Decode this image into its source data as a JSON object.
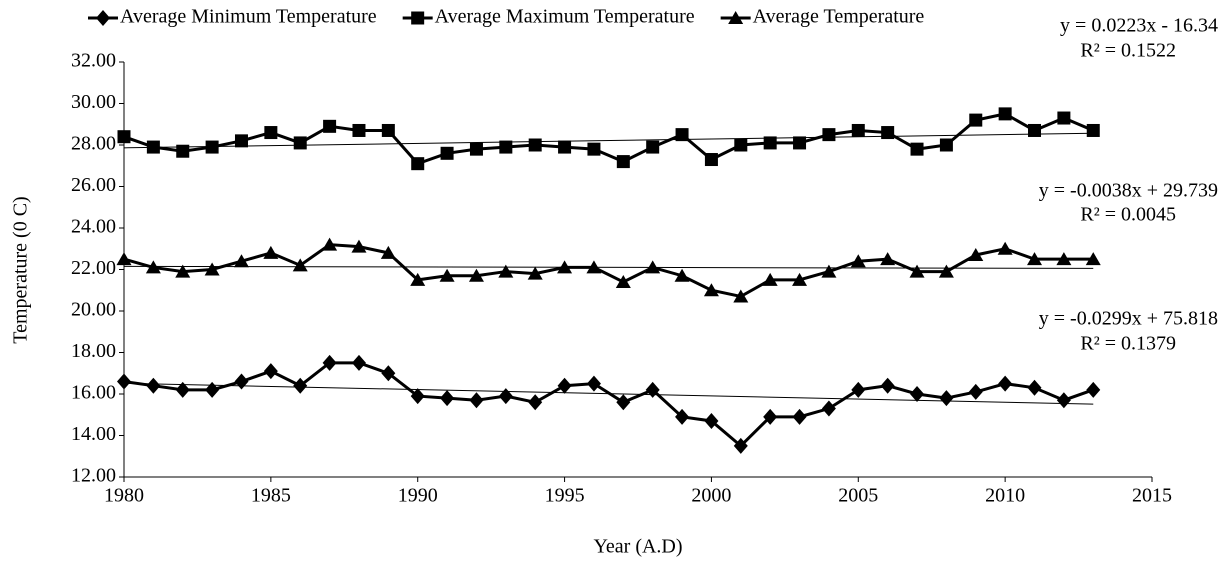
{
  "chart_data": {
    "type": "line",
    "x_label": "Year (A.D)",
    "y_label": "Temperature (0 C)",
    "x": [
      1980,
      1981,
      1982,
      1983,
      1984,
      1985,
      1986,
      1987,
      1988,
      1989,
      1990,
      1991,
      1992,
      1993,
      1994,
      1995,
      1996,
      1997,
      1998,
      1999,
      2000,
      2001,
      2002,
      2003,
      2004,
      2005,
      2006,
      2007,
      2008,
      2009,
      2010,
      2011,
      2012,
      2013
    ],
    "xlim": [
      1980,
      2015
    ],
    "xticks": [
      1980,
      1985,
      1990,
      1995,
      2000,
      2005,
      2010,
      2015
    ],
    "ylim": [
      12,
      32
    ],
    "yticks": [
      {
        "value": 12,
        "label": "12.00"
      },
      {
        "value": 14,
        "label": "14.00"
      },
      {
        "value": 16,
        "label": "16.00"
      },
      {
        "value": 18,
        "label": "18.00"
      },
      {
        "value": 20,
        "label": "20.00"
      },
      {
        "value": 22,
        "label": "22.00"
      },
      {
        "value": 24,
        "label": "24.00"
      },
      {
        "value": 26,
        "label": "26.00"
      },
      {
        "value": 28,
        "label": "28.00"
      },
      {
        "value": 30,
        "label": "30.00"
      },
      {
        "value": 32,
        "label": "32.00"
      }
    ],
    "legend": "top",
    "series": [
      {
        "name": "Average Minimum Temperature",
        "color": "#000000",
        "marker": "diamond",
        "values": [
          16.6,
          16.4,
          16.2,
          16.2,
          16.6,
          17.1,
          16.4,
          17.5,
          17.5,
          17.0,
          15.9,
          15.8,
          15.7,
          15.9,
          15.6,
          16.4,
          16.5,
          15.6,
          16.2,
          14.9,
          14.7,
          13.5,
          14.9,
          14.9,
          15.3,
          16.2,
          16.4,
          16.0,
          15.8,
          16.1,
          16.5,
          16.3,
          15.7,
          16.2
        ],
        "trendline": {
          "equation": "y = -0.0299x + 75.818",
          "r2": "R² = 0.1379"
        }
      },
      {
        "name": "Average Maximum Temperature",
        "color": "#000000",
        "marker": "square",
        "values": [
          28.4,
          27.9,
          27.7,
          27.9,
          28.2,
          28.6,
          28.1,
          28.9,
          28.7,
          28.7,
          27.1,
          27.6,
          27.8,
          27.9,
          28.0,
          27.9,
          27.8,
          27.2,
          27.9,
          28.5,
          27.3,
          28.0,
          28.1,
          28.1,
          28.5,
          28.7,
          28.6,
          27.8,
          28.0,
          29.2,
          29.5,
          28.7,
          29.3,
          28.7
        ],
        "trendline": {
          "equation": "y = 0.0223x - 16.34",
          "r2": "R² = 0.1522"
        }
      },
      {
        "name": "Average Temperature",
        "color": "#000000",
        "marker": "triangle",
        "values": [
          22.5,
          22.1,
          21.9,
          22.0,
          22.4,
          22.8,
          22.2,
          23.2,
          23.1,
          22.8,
          21.5,
          21.7,
          21.7,
          21.9,
          21.8,
          22.1,
          22.1,
          21.4,
          22.1,
          21.7,
          21.0,
          20.7,
          21.5,
          21.5,
          21.9,
          22.4,
          22.5,
          21.9,
          21.9,
          22.7,
          23.0,
          22.5,
          22.5,
          22.5
        ],
        "trendline": {
          "equation": "y = -0.0038x + 29.739",
          "r2": "R² = 0.0045"
        }
      }
    ]
  }
}
